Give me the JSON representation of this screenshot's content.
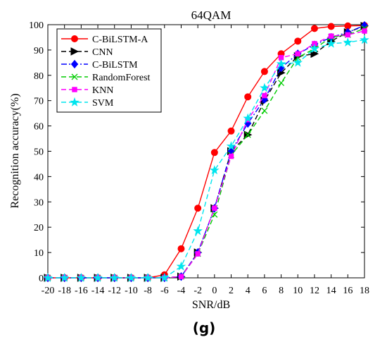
{
  "chart_data": {
    "type": "line",
    "title": "64QAM",
    "xlabel": "SNR/dB",
    "ylabel": "Recognition accuracy(%)",
    "caption": "(g)",
    "x": [
      -20,
      -18,
      -16,
      -14,
      -12,
      -10,
      -8,
      -6,
      -4,
      -2,
      0,
      2,
      4,
      6,
      8,
      10,
      12,
      14,
      16,
      18
    ],
    "xlim": [
      -20,
      18
    ],
    "ylim": [
      0,
      100
    ],
    "yticks": [
      0,
      10,
      20,
      30,
      40,
      50,
      60,
      70,
      80,
      90,
      100
    ],
    "grid": false,
    "legend_position": "top-left",
    "series": [
      {
        "name": "C-BiLSTM-A",
        "color": "#ff0000",
        "dash": "solid",
        "marker": "circle",
        "values": [
          0,
          0,
          0,
          0,
          0,
          0,
          0,
          1.2,
          11.5,
          27.5,
          49.5,
          58,
          71.5,
          81.5,
          88.5,
          93.5,
          98.5,
          99.3,
          99.5,
          99.7
        ]
      },
      {
        "name": "CNN",
        "color": "#000000",
        "dash": "dashed",
        "marker": "triangle-right",
        "values": [
          0,
          0,
          0,
          0,
          0,
          0,
          0,
          0,
          0.5,
          10,
          27.5,
          50,
          56.5,
          70,
          81,
          87.5,
          88.5,
          93.5,
          97,
          99.5
        ]
      },
      {
        "name": "C-BiLSTM",
        "color": "#0000ff",
        "dash": "dashdot",
        "marker": "diamond",
        "values": [
          0,
          0,
          0,
          0,
          0,
          0,
          0,
          0,
          0.5,
          10,
          27.5,
          50,
          61,
          70.5,
          83,
          88.5,
          92,
          95,
          97,
          99.7
        ]
      },
      {
        "name": "RandomForest",
        "color": "#00cc00",
        "dash": "dashed",
        "marker": "x",
        "values": [
          0,
          0,
          0,
          0,
          0,
          0,
          0,
          0,
          0.5,
          9.5,
          25,
          48.5,
          56.5,
          66,
          77,
          87,
          90.5,
          95,
          96,
          98.5
        ]
      },
      {
        "name": "KNN",
        "color": "#ff00ff",
        "dash": "dashed",
        "marker": "square",
        "values": [
          0,
          0,
          0,
          0,
          0,
          0,
          0,
          0,
          0.5,
          9.5,
          27.5,
          48,
          62.5,
          72,
          87,
          88.5,
          92.5,
          95.5,
          96,
          97.5
        ]
      },
      {
        "name": "SVM",
        "color": "#00e5ee",
        "dash": "dashed",
        "marker": "star",
        "values": [
          0,
          0,
          0,
          0,
          0,
          0,
          0,
          0,
          4.5,
          18.5,
          42.5,
          52,
          63,
          75,
          84.5,
          85,
          90.5,
          92.5,
          93,
          94
        ]
      }
    ]
  }
}
